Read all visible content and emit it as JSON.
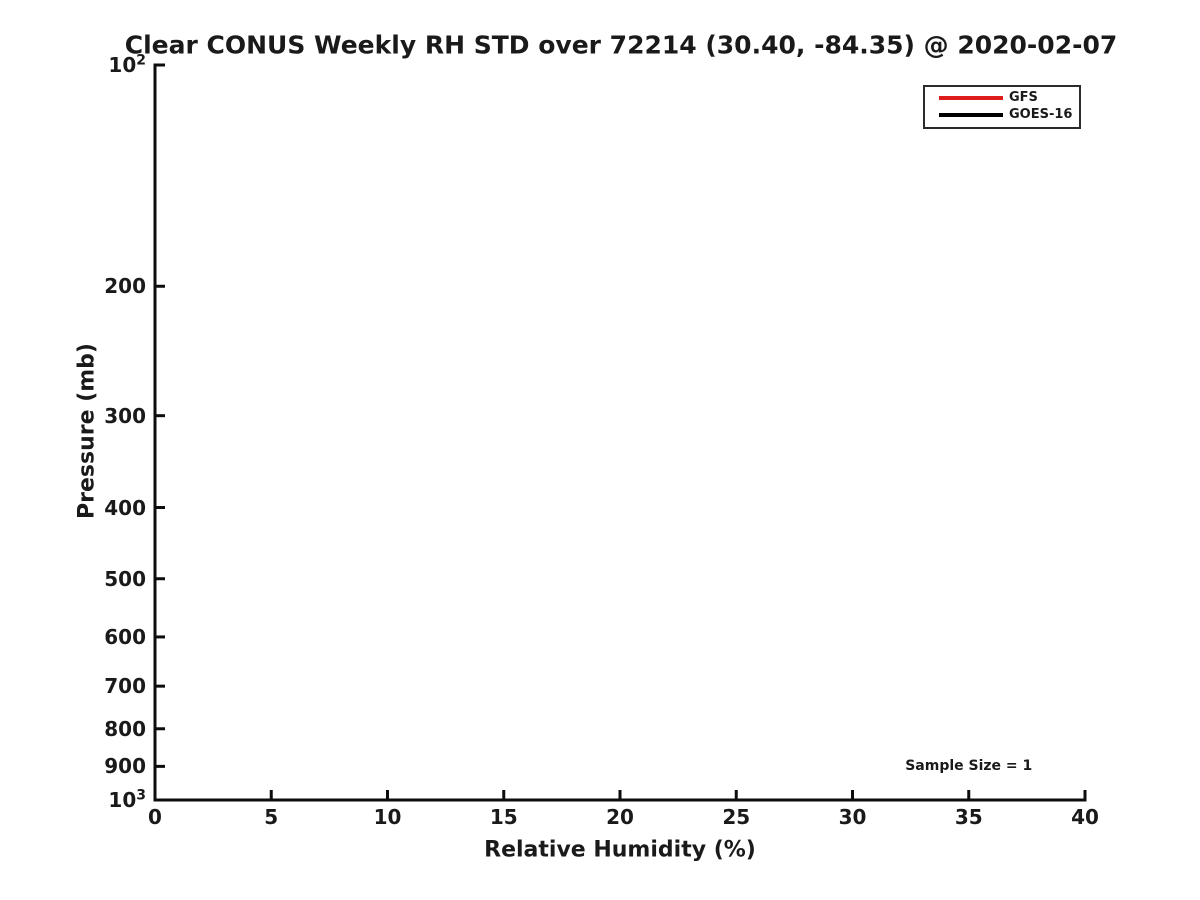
{
  "chart_data": {
    "type": "line",
    "title": "Clear CONUS Weekly RH STD over 72214 (30.40, -84.35) @ 2020-02-07",
    "xlabel": "Relative Humidity (%)",
    "ylabel": "Pressure (mb)",
    "x_axis": {
      "scale": "linear",
      "min": 0,
      "max": 40,
      "ticks": [
        0,
        5,
        10,
        15,
        20,
        25,
        30,
        35,
        40
      ]
    },
    "y_axis": {
      "scale": "log",
      "min": 100,
      "max": 1000,
      "direction": "increasing-downward",
      "ticks": [
        {
          "value": 100,
          "label": "10",
          "exponent": "2"
        },
        {
          "value": 200,
          "label": "200"
        },
        {
          "value": 300,
          "label": "300"
        },
        {
          "value": 400,
          "label": "400"
        },
        {
          "value": 500,
          "label": "500"
        },
        {
          "value": 600,
          "label": "600"
        },
        {
          "value": 700,
          "label": "700"
        },
        {
          "value": 800,
          "label": "800"
        },
        {
          "value": 900,
          "label": "900"
        },
        {
          "value": 1000,
          "label": "10",
          "exponent": "3"
        }
      ]
    },
    "grid": false,
    "legend": {
      "position": "top-right",
      "entries": [
        {
          "name": "GFS",
          "color": "#dd1c1c"
        },
        {
          "name": "GOES-16",
          "color": "#000000"
        }
      ]
    },
    "series": [
      {
        "name": "GFS",
        "color": "#dd1c1c",
        "points": []
      },
      {
        "name": "GOES-16",
        "color": "#000000",
        "points": []
      }
    ],
    "annotations": [
      {
        "text": "Sample Size = 1",
        "x": 35,
        "y": 900
      }
    ]
  },
  "colors": {
    "axis": "#0d0d0d",
    "text": "#1a1a1a",
    "background": "#ffffff"
  }
}
